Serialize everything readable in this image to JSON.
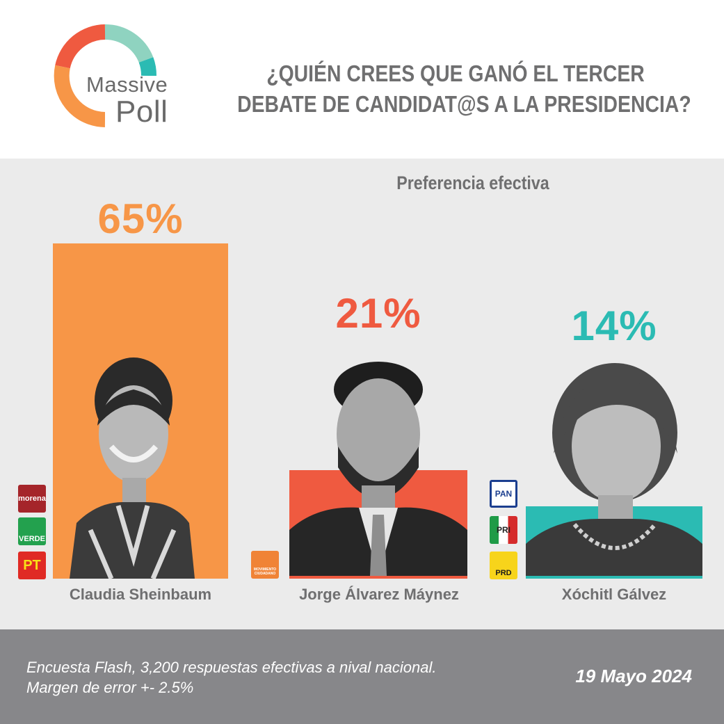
{
  "logo": {
    "word1": "Massive",
    "word2": "Poll"
  },
  "title": {
    "line1": "¿QUIÉN CREES QUE GANÓ EL TERCER",
    "line2": "DEBATE DE CANDIDAT@S A LA PRESIDENCIA?"
  },
  "colors": {
    "orange": "#f79647",
    "red": "#ef5a40",
    "teal": "#2bbbb3",
    "gray_text": "#6f6f70",
    "footer_bg": "#87878a",
    "chart_bg": "#ebebeb"
  },
  "chart_data": {
    "type": "bar",
    "title": "¿QUIÉN CREES QUE GANÓ EL TERCER DEBATE DE CANDIDAT@S A LA PRESIDENCIA?",
    "subtitle": "Preferencia efectiva",
    "categories": [
      "Claudia Sheinbaum",
      "Jorge Álvarez Máynez",
      "Xóchitl Gálvez"
    ],
    "values": [
      65,
      21,
      14
    ],
    "value_labels": [
      "65%",
      "21%",
      "14%"
    ],
    "bar_colors": [
      "#f79647",
      "#ef5a40",
      "#2bbbb3"
    ],
    "ylim": [
      0,
      65
    ],
    "grid": false,
    "parties": [
      [
        "morena",
        "VERDE",
        "PT"
      ],
      [
        "MOVIMIENTO CIUDADANO"
      ],
      [
        "PAN",
        "PRI",
        "PRD"
      ]
    ]
  },
  "footer": {
    "note_line1": "Encuesta Flash, 3,200 respuestas efectivas a nival nacional.",
    "note_line2": "Margen de error +- 2.5%",
    "date": "19 Mayo 2024"
  }
}
